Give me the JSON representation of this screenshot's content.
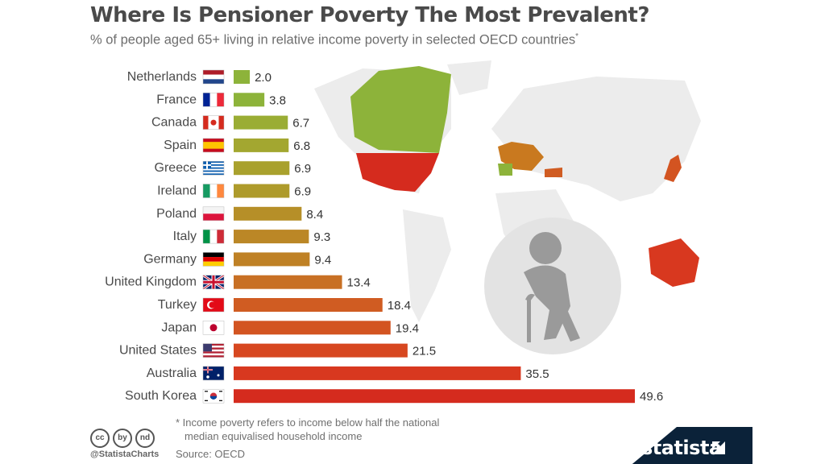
{
  "title": "Where Is Pensioner Poverty The Most Prevalent?",
  "subtitle": "% of people aged 65+ living in relative income poverty in selected OECD countries",
  "subtitle_mark": "*",
  "footnote_line1": "* Income poverty refers to income below half the national",
  "footnote_line2": "median equivalised household income",
  "source": "Source: OECD",
  "handle": "@StatistaCharts",
  "brand": "statista",
  "cc_icons": [
    "cc",
    "by",
    "nd"
  ],
  "colors": {
    "title": "#4a4a4a",
    "low": "#8db33a",
    "mid": "#c9791f",
    "high": "#d52b1e",
    "map": "#ececec",
    "brand_band": "#0b2239"
  },
  "chart_data": {
    "type": "bar",
    "orientation": "horizontal",
    "title": "Where Is Pensioner Poverty The Most Prevalent?",
    "subtitle": "% of people aged 65+ living in relative income poverty in selected OECD countries",
    "xlabel": "",
    "ylabel": "",
    "xlim": [
      0,
      50
    ],
    "grid": false,
    "legend": "none",
    "categories": [
      "Netherlands",
      "France",
      "Canada",
      "Spain",
      "Greece",
      "Ireland",
      "Poland",
      "Italy",
      "Germany",
      "United Kingdom",
      "Turkey",
      "Japan",
      "United States",
      "Australia",
      "South Korea"
    ],
    "values": [
      2.0,
      3.8,
      6.7,
      6.8,
      6.9,
      6.9,
      8.4,
      9.3,
      9.4,
      13.4,
      18.4,
      19.4,
      21.5,
      35.5,
      49.6
    ],
    "value_labels": [
      "2.0",
      "3.8",
      "6.7",
      "6.8",
      "6.9",
      "6.9",
      "8.4",
      "9.3",
      "9.4",
      "13.4",
      "18.4",
      "19.4",
      "21.5",
      "35.5",
      "49.6"
    ],
    "flags": [
      "netherlands-flag",
      "france-flag",
      "canada-flag",
      "spain-flag",
      "greece-flag",
      "ireland-flag",
      "poland-flag",
      "italy-flag",
      "germany-flag",
      "united-kingdom-flag",
      "turkey-flag",
      "japan-flag",
      "united-states-flag",
      "australia-flag",
      "south-korea-flag"
    ],
    "bar_colors": [
      "#8db33a",
      "#8db33a",
      "#9aad34",
      "#a3a730",
      "#a9a12d",
      "#ae9b2b",
      "#b68f28",
      "#bb8726",
      "#bf8125",
      "#c87024",
      "#d05c22",
      "#d35421",
      "#d74720",
      "#d8381f",
      "#d52b1e"
    ]
  }
}
